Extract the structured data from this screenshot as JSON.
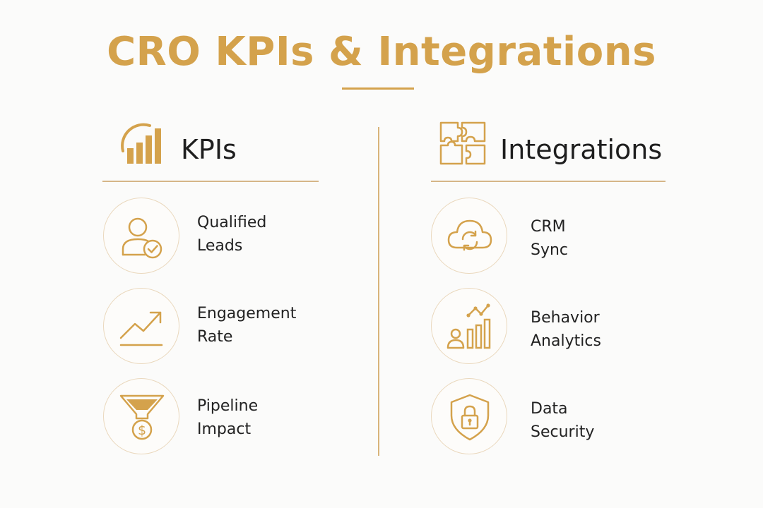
{
  "title": "CRO KPIs & Integrations",
  "kpis": {
    "heading": "KPIs",
    "icon": "bar-chart-icon",
    "items": [
      {
        "line1": "Qualified",
        "line2": "Leads",
        "icon": "qualified-lead-icon"
      },
      {
        "line1": "Engagement",
        "line2": "Rate",
        "icon": "trend-up-icon"
      },
      {
        "line1": "Pipeline",
        "line2": "Impact",
        "icon": "funnel-dollar-icon"
      }
    ]
  },
  "integrations": {
    "heading": "Integrations",
    "icon": "puzzle-icon",
    "items": [
      {
        "line1": "CRM",
        "line2": "Sync",
        "icon": "cloud-sync-icon"
      },
      {
        "line1": "Behavior",
        "line2": "Analytics",
        "icon": "analytics-icon"
      },
      {
        "line1": "Data",
        "line2": "Security",
        "icon": "shield-lock-icon"
      }
    ]
  },
  "colors": {
    "accent": "#d4a24c",
    "line": "#d6b688",
    "circle_border": "#ead8bd",
    "text": "#222222",
    "background": "#fbfbfa"
  }
}
